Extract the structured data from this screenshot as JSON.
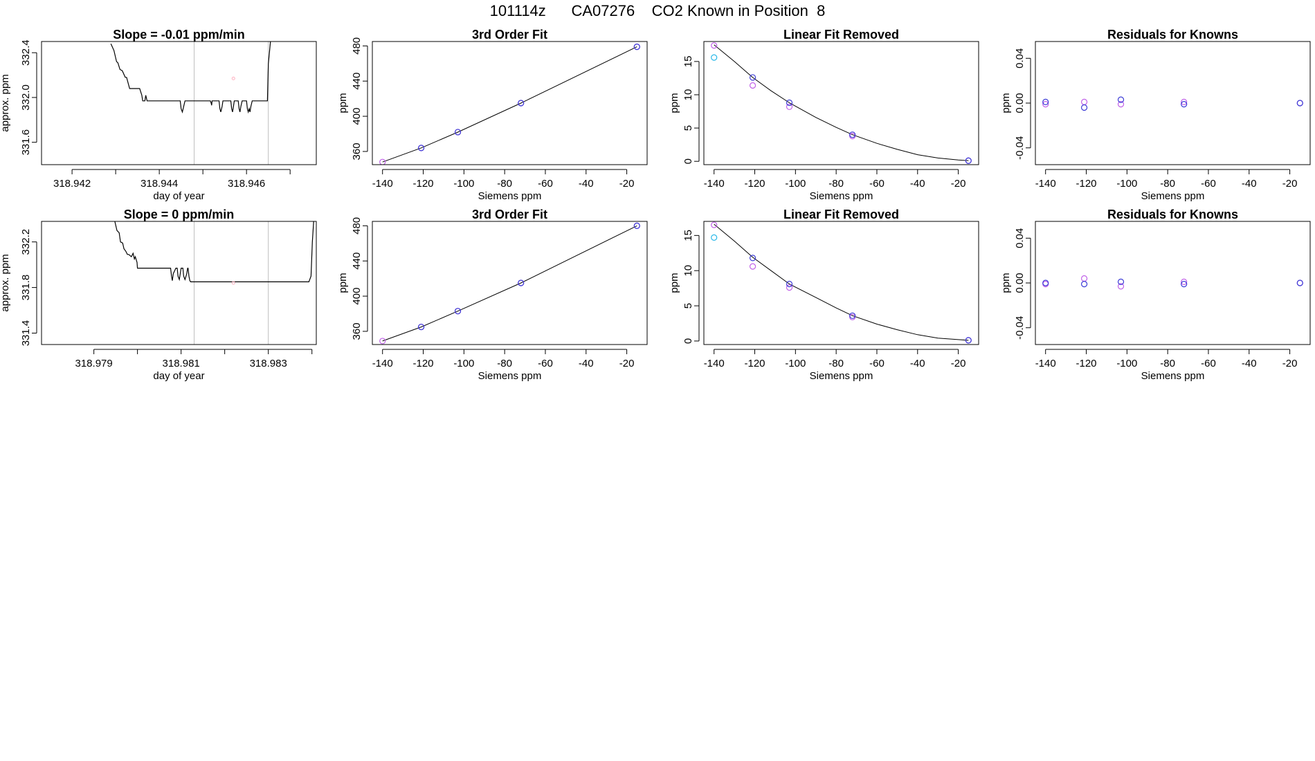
{
  "page_title": "101114z      CA07276    CO2 Known in Position  8",
  "colors": {
    "axis": "#000000",
    "frame": "#000000",
    "line": "#000000",
    "vline": "#bebebe",
    "blue": "#3b3bd6",
    "purple": "#c060e8",
    "cyan": "#28b8e8",
    "pink": "#ffb0c0"
  },
  "chart_data": [
    {
      "type": "line",
      "title": "Slope =  -0.01  ppm/min",
      "xlabel": "day of year",
      "ylabel": "approx. ppm",
      "xlim": [
        318.9413,
        318.9476
      ],
      "ylim": [
        331.4,
        332.5
      ],
      "xticks": [
        318.942,
        318.943,
        318.944,
        318.945,
        318.946,
        318.947
      ],
      "xtick_labels": [
        "318.942",
        "",
        "318.944",
        "",
        "318.946",
        ""
      ],
      "yticks": [
        331.6,
        332.0,
        332.4
      ],
      "ytick_labels": [
        "331.6",
        "332.0",
        "332.4"
      ],
      "vlines": [
        318.9448,
        318.9465
      ],
      "marker": {
        "x": 318.9457,
        "y": 332.17
      },
      "series": [
        {
          "x": [
            318.94289,
            318.94296,
            318.94302,
            318.94305,
            318.9431,
            318.94315,
            318.94322,
            318.94325,
            318.94332,
            318.94343,
            318.94345,
            318.94355,
            318.9436,
            318.94362,
            318.94367,
            318.94369,
            318.94372,
            318.94374,
            318.94387,
            318.94448,
            318.9445,
            318.94453,
            318.94456,
            318.94459,
            318.94515,
            318.94517,
            318.94519,
            318.9452,
            318.94521,
            318.94537,
            318.94539,
            318.94541,
            318.94544,
            318.94546,
            318.94564,
            318.94566,
            318.94568,
            318.9457,
            318.94572,
            318.94581,
            318.94583,
            318.94585,
            318.94587,
            318.9459,
            318.94592,
            318.946,
            318.94602,
            318.94604,
            318.94606,
            318.94608,
            318.9461,
            318.94613,
            318.94615,
            318.94643,
            318.94648,
            318.9465,
            318.94655
          ],
          "y": [
            332.48,
            332.42,
            332.32,
            332.31,
            332.25,
            332.24,
            332.18,
            332.18,
            332.08,
            332.08,
            332.08,
            332.08,
            332.02,
            331.97,
            331.97,
            332.02,
            331.97,
            331.97,
            331.97,
            331.97,
            331.9,
            331.87,
            331.92,
            331.97,
            331.97,
            331.97,
            331.95,
            331.93,
            331.97,
            331.97,
            331.9,
            331.87,
            331.92,
            331.97,
            331.97,
            331.9,
            331.87,
            331.92,
            331.97,
            331.97,
            331.9,
            331.87,
            331.92,
            331.97,
            331.97,
            331.97,
            331.9,
            331.87,
            331.9,
            331.87,
            331.92,
            331.97,
            331.97,
            331.97,
            331.97,
            332.3,
            332.5
          ]
        }
      ]
    },
    {
      "type": "scatter",
      "title": "3rd Order Fit",
      "xlabel": "Siemens ppm",
      "ylabel": "ppm",
      "xlim": [
        -145,
        -10
      ],
      "ylim": [
        345,
        485
      ],
      "xticks": [
        -140,
        -120,
        -100,
        -80,
        -60,
        -40,
        -20
      ],
      "xtick_labels": [
        "-140",
        "-120",
        "-100",
        "-80",
        "-60",
        "-40",
        "-20"
      ],
      "yticks": [
        360,
        400,
        440,
        480
      ],
      "ytick_labels": [
        "360",
        "400",
        "440",
        "480"
      ],
      "fit_line": {
        "x": [
          -140,
          -121,
          -103,
          -72,
          -15
        ],
        "y": [
          348,
          364,
          382,
          415,
          479
        ]
      },
      "series": [
        {
          "x": [
            -140,
            -121,
            -103,
            -72,
            -15
          ],
          "y": [
            348,
            364,
            382,
            415,
            479
          ],
          "color": "purple"
        },
        {
          "x": [
            -121,
            -103,
            -72,
            -15
          ],
          "y": [
            364,
            382,
            415,
            479
          ],
          "color": "blue"
        }
      ]
    },
    {
      "type": "scatter",
      "title": "Linear Fit Removed",
      "xlabel": "Siemens ppm",
      "ylabel": "ppm",
      "xlim": [
        -145,
        -10
      ],
      "ylim": [
        -0.5,
        18
      ],
      "xticks": [
        -140,
        -120,
        -100,
        -80,
        -60,
        -40,
        -20
      ],
      "xtick_labels": [
        "-140",
        "-120",
        "-100",
        "-80",
        "-60",
        "-40",
        "-20"
      ],
      "yticks": [
        0,
        5,
        10,
        15
      ],
      "ytick_labels": [
        "0",
        "5",
        "10",
        "15"
      ],
      "fit_curve": {
        "x": [
          -140,
          -130,
          -121,
          -112,
          -103,
          -90,
          -80,
          -72,
          -60,
          -50,
          -40,
          -30,
          -20,
          -15
        ],
        "y": [
          17.5,
          15.0,
          12.6,
          10.6,
          8.8,
          6.6,
          5.1,
          4.0,
          2.7,
          1.8,
          1.0,
          0.5,
          0.2,
          0.1
        ]
      },
      "series": [
        {
          "x": [
            -140,
            -121,
            -103,
            -72,
            -15
          ],
          "y": [
            17.4,
            11.4,
            8.2,
            3.8,
            0.1
          ],
          "color": "purple"
        },
        {
          "x": [
            -121,
            -103,
            -72,
            -15
          ],
          "y": [
            12.6,
            8.8,
            4.0,
            0.1
          ],
          "color": "blue"
        },
        {
          "x": [
            -140
          ],
          "y": [
            15.6
          ],
          "color": "cyan"
        }
      ]
    },
    {
      "type": "scatter",
      "title": "Residuals for Knowns",
      "xlabel": "Siemens ppm",
      "ylabel": "ppm",
      "xlim": [
        -145,
        -10
      ],
      "ylim": [
        -0.055,
        0.055
      ],
      "xticks": [
        -140,
        -120,
        -100,
        -80,
        -60,
        -40,
        -20
      ],
      "xtick_labels": [
        "-140",
        "-120",
        "-100",
        "-80",
        "-60",
        "-40",
        "-20"
      ],
      "yticks": [
        -0.04,
        0.0,
        0.04
      ],
      "ytick_labels": [
        "-0.04",
        "0.00",
        "0.04"
      ],
      "series": [
        {
          "x": [
            -140,
            -121,
            -103,
            -72,
            -15
          ],
          "y": [
            -0.001,
            0.001,
            -0.001,
            0.001,
            0.0
          ],
          "color": "purple"
        },
        {
          "x": [
            -140,
            -121,
            -103,
            -72,
            -15
          ],
          "y": [
            0.001,
            -0.004,
            0.003,
            -0.001,
            0.0
          ],
          "color": "blue"
        }
      ]
    },
    {
      "type": "line",
      "title": "Slope =  0  ppm/min",
      "xlabel": "day of year",
      "ylabel": "approx. ppm",
      "xlim": [
        318.9778,
        318.9841
      ],
      "ylim": [
        331.3,
        332.38
      ],
      "xticks": [
        318.979,
        318.98,
        318.981,
        318.982,
        318.983,
        318.984
      ],
      "xtick_labels": [
        "318.979",
        "",
        "318.981",
        "",
        "318.983",
        ""
      ],
      "yticks": [
        331.4,
        331.8,
        332.2
      ],
      "ytick_labels": [
        "331.4",
        "331.8",
        "332.2"
      ],
      "vlines": [
        318.9813,
        318.983
      ],
      "marker": {
        "x": 318.9822,
        "y": 331.84
      },
      "series": [
        {
          "x": [
            318.97948,
            318.97953,
            318.97958,
            318.97961,
            318.97966,
            318.97969,
            318.97973,
            318.97977,
            318.9798,
            318.97986,
            318.9799,
            318.97993,
            318.97995,
            318.97999,
            318.98,
            318.98002,
            318.98006,
            318.9801,
            318.98014,
            318.9802,
            318.98074,
            318.98076,
            318.98078,
            318.9808,
            318.98082,
            318.98088,
            318.98091,
            318.98093,
            318.98096,
            318.98098,
            318.981,
            318.98104,
            318.98106,
            318.98109,
            318.98113,
            318.98115,
            318.98116,
            318.98118,
            318.9812,
            318.98122,
            318.98124,
            318.9815,
            318.982,
            318.9825,
            318.983,
            318.9835,
            318.98393,
            318.98398,
            318.98401,
            318.98404
          ],
          "y": [
            332.38,
            332.3,
            332.28,
            332.2,
            332.19,
            332.14,
            332.12,
            332.09,
            332.09,
            332.07,
            332.1,
            332.05,
            332.07,
            332.02,
            331.97,
            331.97,
            331.97,
            331.97,
            331.97,
            331.97,
            331.97,
            331.97,
            331.9,
            331.86,
            331.92,
            331.97,
            331.97,
            331.9,
            331.87,
            331.92,
            331.97,
            331.97,
            331.9,
            331.87,
            331.92,
            331.97,
            331.97,
            331.9,
            331.86,
            331.85,
            331.85,
            331.85,
            331.85,
            331.85,
            331.85,
            331.85,
            331.85,
            331.9,
            332.2,
            332.38
          ]
        }
      ]
    },
    {
      "type": "scatter",
      "title": "3rd Order Fit",
      "xlabel": "Siemens ppm",
      "ylabel": "ppm",
      "xlim": [
        -145,
        -10
      ],
      "ylim": [
        345,
        485
      ],
      "xticks": [
        -140,
        -120,
        -100,
        -80,
        -60,
        -40,
        -20
      ],
      "xtick_labels": [
        "-140",
        "-120",
        "-100",
        "-80",
        "-60",
        "-40",
        "-20"
      ],
      "yticks": [
        360,
        400,
        440,
        480
      ],
      "ytick_labels": [
        "360",
        "400",
        "440",
        "480"
      ],
      "fit_line": {
        "x": [
          -140,
          -121,
          -103,
          -72,
          -15
        ],
        "y": [
          349,
          365,
          383,
          415,
          480
        ]
      },
      "series": [
        {
          "x": [
            -140,
            -121,
            -103,
            -72,
            -15
          ],
          "y": [
            349,
            365,
            383,
            415,
            480
          ],
          "color": "purple"
        },
        {
          "x": [
            -121,
            -103,
            -72,
            -15
          ],
          "y": [
            365,
            383,
            415,
            480
          ],
          "color": "blue"
        }
      ]
    },
    {
      "type": "scatter",
      "title": "Linear Fit Removed",
      "xlabel": "Siemens ppm",
      "ylabel": "ppm",
      "xlim": [
        -145,
        -10
      ],
      "ylim": [
        -0.5,
        17
      ],
      "xticks": [
        -140,
        -120,
        -100,
        -80,
        -60,
        -40,
        -20
      ],
      "xtick_labels": [
        "-140",
        "-120",
        "-100",
        "-80",
        "-60",
        "-40",
        "-20"
      ],
      "yticks": [
        0,
        5,
        10,
        15
      ],
      "ytick_labels": [
        "0",
        "5",
        "10",
        "15"
      ],
      "fit_curve": {
        "x": [
          -140,
          -130,
          -121,
          -112,
          -103,
          -90,
          -80,
          -72,
          -60,
          -50,
          -40,
          -30,
          -20,
          -15
        ],
        "y": [
          16.6,
          14.2,
          11.9,
          10.0,
          8.1,
          6.2,
          4.7,
          3.6,
          2.4,
          1.6,
          0.9,
          0.4,
          0.2,
          0.1
        ]
      },
      "series": [
        {
          "x": [
            -140,
            -121,
            -103,
            -72,
            -15
          ],
          "y": [
            16.5,
            10.6,
            7.6,
            3.4,
            0.1
          ],
          "color": "purple"
        },
        {
          "x": [
            -121,
            -103,
            -72,
            -15
          ],
          "y": [
            11.8,
            8.1,
            3.6,
            0.1
          ],
          "color": "blue"
        },
        {
          "x": [
            -140
          ],
          "y": [
            14.7
          ],
          "color": "cyan"
        }
      ]
    },
    {
      "type": "scatter",
      "title": "Residuals for Knowns",
      "xlabel": "Siemens ppm",
      "ylabel": "ppm",
      "xlim": [
        -145,
        -10
      ],
      "ylim": [
        -0.055,
        0.055
      ],
      "xticks": [
        -140,
        -120,
        -100,
        -80,
        -60,
        -40,
        -20
      ],
      "xtick_labels": [
        "-140",
        "-120",
        "-100",
        "-80",
        "-60",
        "-40",
        "-20"
      ],
      "yticks": [
        -0.04,
        0.0,
        0.04
      ],
      "ytick_labels": [
        "-0.04",
        "0.00",
        "0.04"
      ],
      "series": [
        {
          "x": [
            -140,
            -121,
            -103,
            -72,
            -15
          ],
          "y": [
            -0.001,
            0.004,
            -0.003,
            0.001,
            0.0
          ],
          "color": "purple"
        },
        {
          "x": [
            -140,
            -121,
            -103,
            -72,
            -15
          ],
          "y": [
            0.0,
            -0.001,
            0.001,
            -0.001,
            0.0
          ],
          "color": "blue"
        }
      ]
    }
  ]
}
